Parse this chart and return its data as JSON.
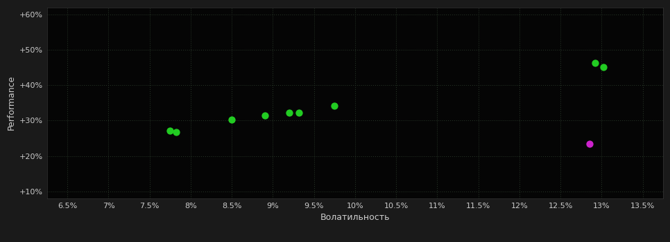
{
  "background_color": "#1a1a1a",
  "plot_bg_color": "#050505",
  "grid_color": "#2a3a2a",
  "text_color": "#cccccc",
  "xlabel": "Волатильность",
  "ylabel": "Performance",
  "green_points": [
    [
      7.75,
      27.2
    ],
    [
      7.82,
      26.8
    ],
    [
      8.5,
      30.3
    ],
    [
      8.9,
      31.5
    ],
    [
      9.2,
      32.2
    ],
    [
      9.32,
      32.3
    ],
    [
      9.75,
      34.2
    ],
    [
      12.92,
      46.3
    ],
    [
      13.02,
      45.2
    ]
  ],
  "magenta_points": [
    [
      12.85,
      23.5
    ]
  ],
  "xlim": [
    6.25,
    13.75
  ],
  "ylim": [
    8,
    62
  ],
  "xticks": [
    6.5,
    7.0,
    7.5,
    8.0,
    8.5,
    9.0,
    9.5,
    10.0,
    10.5,
    11.0,
    11.5,
    12.0,
    12.5,
    13.0,
    13.5
  ],
  "yticks": [
    10,
    20,
    30,
    40,
    50,
    60
  ],
  "green_color": "#22cc22",
  "magenta_color": "#cc22cc",
  "marker_size": 55
}
